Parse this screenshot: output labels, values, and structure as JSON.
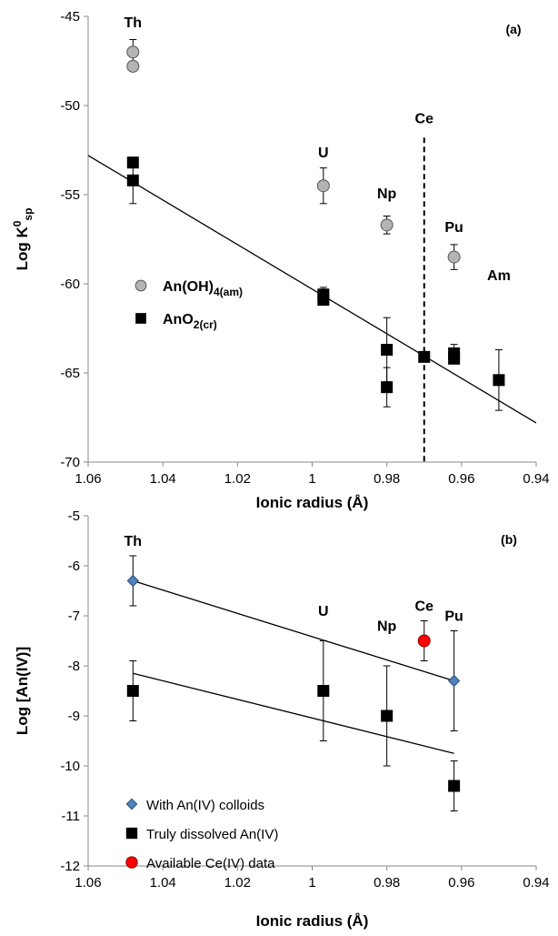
{
  "chart_data": [
    {
      "type": "scatter",
      "panel_label": "(a)",
      "xlabel": "Ionic radius (Å)",
      "ylabel_main": "Log K",
      "ylabel_sup": "0",
      "ylabel_sub": "sp",
      "xlim": [
        1.06,
        0.94
      ],
      "ylim": [
        -70,
        -45
      ],
      "x_reversed": true,
      "xticks": [
        "1.06",
        "1.04",
        "1.02",
        "1",
        "0.98",
        "0.96",
        "0.94"
      ],
      "yticks": [
        "-45",
        "-50",
        "-55",
        "-60",
        "-65",
        "-70"
      ],
      "series": [
        {
          "name_main": "An(OH)",
          "name_sub": "4(am)",
          "marker": "circle",
          "color": "#b4b4b4",
          "points": [
            {
              "x": 1.048,
              "y": -47.0,
              "err": 0.7
            },
            {
              "x": 1.048,
              "y": -47.8,
              "err": 0
            },
            {
              "x": 0.997,
              "y": -54.5,
              "err": 1.0
            },
            {
              "x": 0.98,
              "y": -56.7,
              "err": 0.5
            },
            {
              "x": 0.962,
              "y": -58.5,
              "err": 0.7
            }
          ]
        },
        {
          "name_main": "AnO",
          "name_sub": "2(cr)",
          "marker": "square",
          "color": "#000000",
          "points": [
            {
              "x": 1.048,
              "y": -53.2,
              "err": 0
            },
            {
              "x": 1.048,
              "y": -54.2,
              "err": 1.3
            },
            {
              "x": 0.997,
              "y": -60.6,
              "err": 0.4
            },
            {
              "x": 0.997,
              "y": -60.9,
              "err": 0
            },
            {
              "x": 0.98,
              "y": -63.7,
              "err": 1.8
            },
            {
              "x": 0.98,
              "y": -65.8,
              "err": 1.1
            },
            {
              "x": 0.97,
              "y": -64.1,
              "err": 0
            },
            {
              "x": 0.962,
              "y": -63.9,
              "err": 0.5
            },
            {
              "x": 0.962,
              "y": -64.2,
              "err": 0
            },
            {
              "x": 0.95,
              "y": -65.4,
              "err": 1.7
            }
          ]
        }
      ],
      "trendlines": [
        {
          "x1": 1.06,
          "y1": -52.8,
          "x2": 0.94,
          "y2": -67.8
        }
      ],
      "vline": {
        "x": 0.97,
        "style": "dashed"
      },
      "labels": [
        {
          "text": "Th",
          "x": 1.048,
          "y": -45.6
        },
        {
          "text": "U",
          "x": 0.997,
          "y": -52.9
        },
        {
          "text": "Np",
          "x": 0.98,
          "y": -55.2
        },
        {
          "text": "Ce",
          "x": 0.97,
          "y": -51.0
        },
        {
          "text": "Pu",
          "x": 0.962,
          "y": -57.1
        },
        {
          "text": "Am",
          "x": 0.95,
          "y": -59.8
        }
      ]
    },
    {
      "type": "scatter",
      "panel_label": "(b)",
      "xlabel": "Ionic radius (Å)",
      "ylabel": "Log [An(IV)]",
      "xlim": [
        1.06,
        0.94
      ],
      "ylim": [
        -12,
        -5
      ],
      "x_reversed": true,
      "xticks": [
        "1.06",
        "1.04",
        "1.02",
        "1",
        "0.98",
        "0.96",
        "0.94"
      ],
      "yticks": [
        "-5",
        "-6",
        "-7",
        "-8",
        "-9",
        "-10",
        "-11",
        "-12"
      ],
      "series": [
        {
          "name": "With An(IV) colloids",
          "marker": "diamond",
          "color": "#4f81bd",
          "points": [
            {
              "x": 1.048,
              "y": -6.3,
              "err": 0.5
            },
            {
              "x": 0.962,
              "y": -8.3,
              "err": 1.0
            }
          ]
        },
        {
          "name": "Truly dissolved An(IV)",
          "marker": "square",
          "color": "#000000",
          "points": [
            {
              "x": 1.048,
              "y": -8.5,
              "err": 0.6
            },
            {
              "x": 0.997,
              "y": -8.5,
              "err": 1.0
            },
            {
              "x": 0.98,
              "y": -9.0,
              "err": 1.0
            },
            {
              "x": 0.962,
              "y": -10.4,
              "err": 0.5
            }
          ]
        },
        {
          "name": "Available Ce(IV) data",
          "marker": "circle",
          "color": "#ff0000",
          "points": [
            {
              "x": 0.97,
              "y": -7.5,
              "err": 0.4
            }
          ]
        }
      ],
      "trendlines": [
        {
          "x1": 1.048,
          "y1": -6.3,
          "x2": 0.962,
          "y2": -8.3
        },
        {
          "x1": 1.048,
          "y1": -8.15,
          "x2": 0.962,
          "y2": -9.75
        }
      ],
      "labels": [
        {
          "text": "Th",
          "x": 1.048,
          "y": -5.6
        },
        {
          "text": "U",
          "x": 0.997,
          "y": -7.0
        },
        {
          "text": "Np",
          "x": 0.98,
          "y": -7.3
        },
        {
          "text": "Ce",
          "x": 0.97,
          "y": -6.9
        },
        {
          "text": "Pu",
          "x": 0.962,
          "y": -7.1
        }
      ]
    }
  ]
}
